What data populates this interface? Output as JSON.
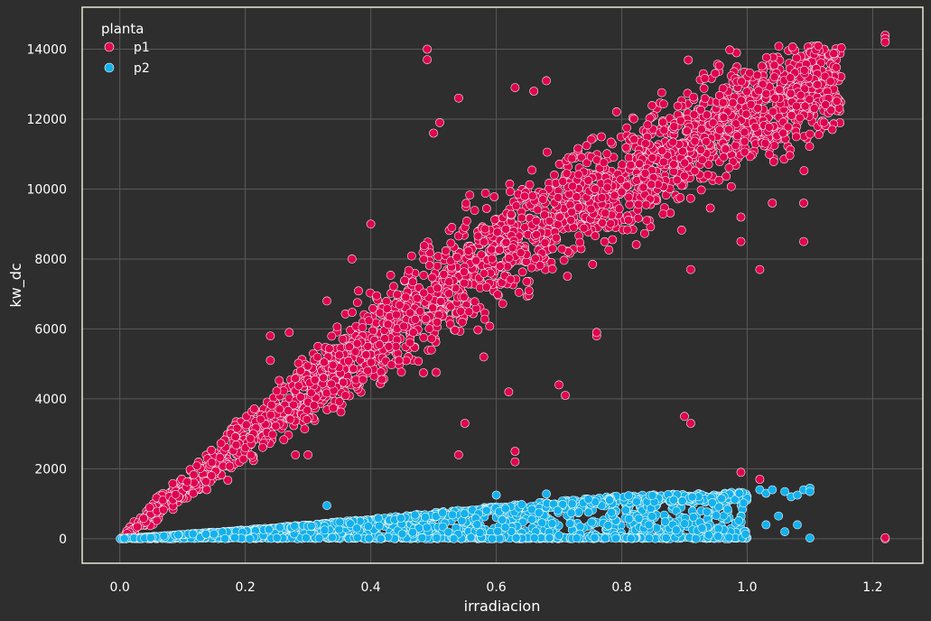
{
  "colors": {
    "background": "#2e2e2e",
    "axes_frame": "#e6e6d6",
    "grid": "#5a5a5a",
    "p1": "#e0004f",
    "p2": "#14b1ef",
    "marker_edge": "#ffffff"
  },
  "chart_data": {
    "type": "scatter",
    "title": "",
    "xlabel": "irradiacion",
    "ylabel": "kw_dc",
    "xlim": [
      -0.06,
      1.28
    ],
    "ylim": [
      -700,
      15200
    ],
    "xticks": [
      0.0,
      0.2,
      0.4,
      0.6,
      0.8,
      1.0,
      1.2
    ],
    "xtick_labels": [
      "0.0",
      "0.2",
      "0.4",
      "0.6",
      "0.8",
      "1.0",
      "1.2"
    ],
    "yticks": [
      0,
      2000,
      4000,
      6000,
      8000,
      10000,
      12000,
      14000
    ],
    "ytick_labels": [
      "0",
      "2000",
      "4000",
      "6000",
      "8000",
      "10000",
      "12000",
      "14000"
    ],
    "grid": true,
    "legend": {
      "title": "planta",
      "placement": "top-left",
      "entries": [
        "p1",
        "p2"
      ]
    },
    "series": [
      {
        "name": "p1",
        "color": "#e0004f",
        "trend": {
          "x": [
            0.0,
            0.1,
            0.2,
            0.3,
            0.4,
            0.5,
            0.6,
            0.7,
            0.8,
            0.9,
            1.0,
            1.1,
            1.15
          ],
          "y": [
            0,
            1400,
            2800,
            4200,
            5600,
            6900,
            8200,
            9300,
            10300,
            11300,
            12200,
            12900,
            13300
          ]
        },
        "outliers": {
          "x": [
            0.49,
            0.49,
            0.54,
            0.5,
            0.51,
            0.4,
            0.33,
            0.37,
            0.24,
            0.24,
            0.27,
            0.28,
            0.3,
            0.54,
            0.63,
            0.63,
            0.62,
            0.7,
            0.71,
            0.76,
            0.76,
            0.9,
            0.91,
            0.91,
            0.99,
            0.99,
            1.02,
            1.04,
            1.09,
            1.09,
            1.22,
            1.22,
            1.22,
            1.22,
            0.99,
            1.02,
            1.22,
            0.58,
            0.63,
            0.66,
            0.68,
            0.55
          ],
          "y": [
            14000,
            13700,
            12600,
            11600,
            11900,
            9000,
            6800,
            8000,
            5800,
            5100,
            5900,
            2400,
            2400,
            2400,
            2500,
            2200,
            4200,
            4400,
            4100,
            5800,
            5900,
            3500,
            3300,
            7700,
            8500,
            9200,
            7700,
            9600,
            9600,
            8500,
            14400,
            14300,
            14200,
            0,
            1900,
            1700,
            30,
            5200,
            12900,
            12800,
            13100,
            3300
          ]
        }
      },
      {
        "name": "p2",
        "color": "#14b1ef",
        "trend": {
          "x": [
            0.0,
            0.2,
            0.4,
            0.6,
            0.8,
            1.0,
            1.1
          ],
          "y": [
            0,
            250,
            550,
            900,
            1200,
            1300,
            1350
          ]
        },
        "outliers": {
          "x": [
            0.33,
            0.6,
            0.68,
            1.02,
            1.03,
            1.04,
            1.06,
            1.07,
            1.08,
            1.09,
            1.1,
            1.1,
            1.03,
            1.05,
            1.06,
            1.08,
            1.1
          ],
          "y": [
            950,
            1250,
            1280,
            1400,
            1300,
            1400,
            1350,
            1200,
            1250,
            1400,
            1450,
            1350,
            400,
            650,
            200,
            400,
            20
          ]
        }
      }
    ]
  }
}
